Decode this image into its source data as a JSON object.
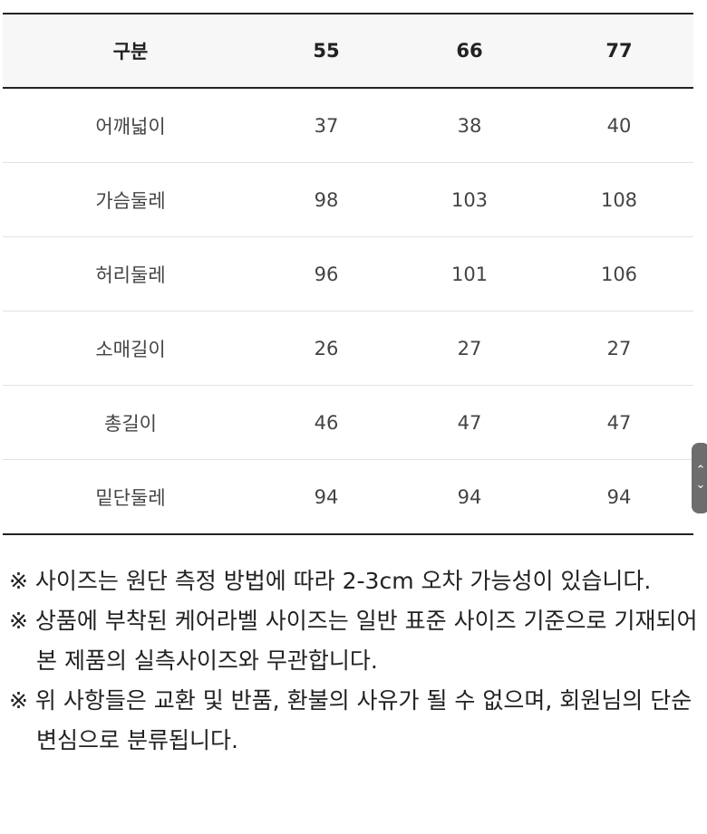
{
  "table": {
    "headers": [
      "구분",
      "55",
      "66",
      "77"
    ],
    "rows": [
      [
        "어깨넓이",
        "37",
        "38",
        "40"
      ],
      [
        "가슴둘레",
        "98",
        "103",
        "108"
      ],
      [
        "허리둘레",
        "96",
        "101",
        "106"
      ],
      [
        "소매길이",
        "26",
        "27",
        "27"
      ],
      [
        "총길이",
        "46",
        "47",
        "47"
      ],
      [
        "밑단둘레",
        "94",
        "94",
        "94"
      ]
    ]
  },
  "notes": [
    "※ 사이즈는 원단 측정 방법에 따라 2-3cm 오차 가능성이 있습니다.",
    "※ 상품에 부착된 케어라벨 사이즈는 일반 표준 사이즈 기준으로 기재되어 본 제품의 실측사이즈와 무관합니다.",
    "※ 위 사항들은 교환 및 반품, 환불의 사유가 될 수 없으며, 회원님의 단순 변심으로 분류됩니다."
  ],
  "scroll_handle": {
    "up_icon": "chevron-up-icon",
    "down_icon": "chevron-down-icon",
    "color": "#6d6d6d"
  }
}
